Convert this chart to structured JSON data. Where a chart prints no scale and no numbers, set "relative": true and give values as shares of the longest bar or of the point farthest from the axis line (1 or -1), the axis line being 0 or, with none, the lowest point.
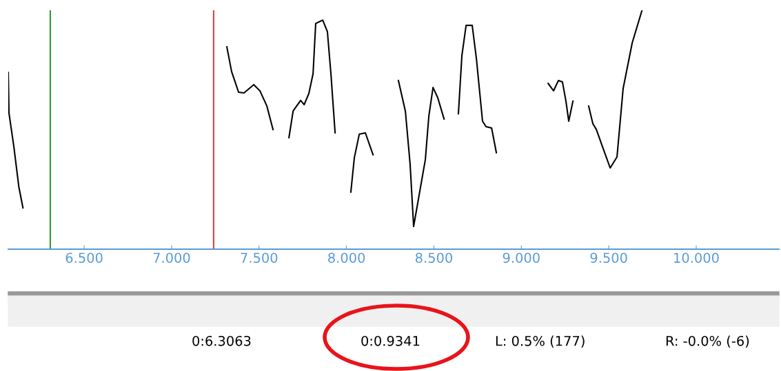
{
  "chart_data": {
    "type": "line",
    "relative": true,
    "grid": false,
    "legend": false,
    "tick_labels": "x",
    "marker": "none",
    "line_style": "solid",
    "xlim": [
      6.066,
      10.473
    ],
    "xticks": [
      {
        "value": 6.5,
        "label": "6.500"
      },
      {
        "value": 7.0,
        "label": "7.000"
      },
      {
        "value": 7.5,
        "label": "7.500"
      },
      {
        "value": 8.0,
        "label": "8.000"
      },
      {
        "value": 8.5,
        "label": "8.500"
      },
      {
        "value": 9.0,
        "label": "9.000"
      },
      {
        "value": 9.5,
        "label": "9.500"
      },
      {
        "value": 10.0,
        "label": "10.000"
      }
    ],
    "ref_lines": [
      {
        "axis": "x",
        "value": 6.3063,
        "label": null,
        "color": "#2e9a2e"
      },
      {
        "axis": "x",
        "value": 7.2404,
        "label": null,
        "color": "#e04040"
      }
    ],
    "series": [
      {
        "color": "#000000",
        "x": [
          6.066,
          6.07,
          6.098,
          6.126,
          6.15,
          6.7,
          7.316,
          7.343,
          7.383,
          7.414,
          7.47,
          7.505,
          7.545,
          7.58,
          7.62,
          7.671,
          7.695,
          7.738,
          7.758,
          7.785,
          7.809,
          7.824,
          7.864,
          7.891,
          7.911,
          7.935,
          7.98,
          8.025,
          8.045,
          8.073,
          8.108,
          8.152,
          8.22,
          8.297,
          8.337,
          8.364,
          8.384,
          8.451,
          8.471,
          8.495,
          8.522,
          8.558,
          8.6,
          8.64,
          8.66,
          8.684,
          8.719,
          8.743,
          8.778,
          8.798,
          8.83,
          8.857,
          9.0,
          9.153,
          9.184,
          9.212,
          9.235,
          9.255,
          9.271,
          9.295,
          9.34,
          9.385,
          9.409,
          9.429,
          9.464,
          9.508,
          9.547,
          9.582,
          9.634,
          9.69
        ],
        "values": [
          0.74,
          0.57,
          0.429,
          0.263,
          0.173,
          null,
          0.847,
          0.744,
          0.657,
          0.654,
          0.689,
          0.663,
          0.599,
          0.501,
          null,
          0.467,
          0.579,
          0.623,
          0.605,
          0.652,
          0.735,
          0.945,
          0.959,
          0.91,
          0.735,
          0.487,
          null,
          0.239,
          0.383,
          0.481,
          0.487,
          0.395,
          null,
          0.706,
          0.577,
          0.355,
          0.095,
          0.375,
          0.557,
          0.677,
          0.634,
          0.545,
          null,
          0.567,
          0.81,
          0.937,
          0.937,
          0.798,
          0.536,
          0.513,
          0.507,
          0.404,
          null,
          0.694,
          0.663,
          0.706,
          0.7,
          0.62,
          0.536,
          0.62,
          null,
          0.599,
          0.525,
          0.501,
          0.429,
          0.34,
          0.386,
          0.672,
          0.864,
          1.0
        ]
      }
    ],
    "annotations": [
      "0:6.3063",
      "0:0.9341",
      "L: 0.5% (177)",
      "R: -0.0% (-6)"
    ]
  }
}
